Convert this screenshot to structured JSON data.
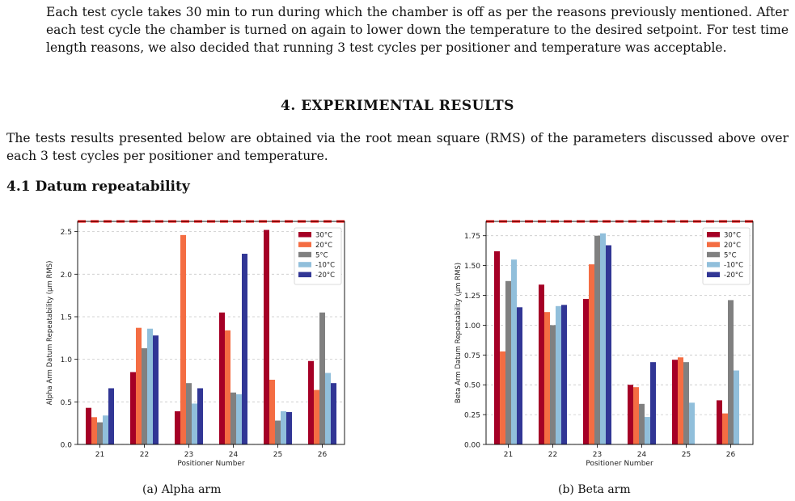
{
  "paragraphs": {
    "intro": "Each test cycle takes 30 min to run during which the chamber is off as per the reasons previously mentioned. After each test cycle the chamber is turned on again to lower down the temperature to the desired setpoint. For test time length reasons, we also decided that running 3 test cycles per positioner and temperature was acceptable.",
    "results": "The tests results presented below are obtained via the root mean square (RMS) of the parameters discussed above over each 3 test cycles per positioner and temperature."
  },
  "headings": {
    "section": "4. EXPERIMENTAL RESULTS",
    "subsection": "4.1  Datum repeatability"
  },
  "captions": {
    "alpha": "(a) Alpha arm",
    "beta": "(b) Beta arm"
  },
  "colors": {
    "30°C": "#a50026",
    "20°C": "#f46d43",
    "5°C": "#808080",
    "-10°C": "#91bfdb",
    "-20°C": "#313695",
    "requirement_line": "#ff0000"
  },
  "chart_data": [
    {
      "type": "bar",
      "xlabel": "Positioner Number",
      "ylabel": "Alpha Arm Datum Repeatability (μm RMS)",
      "categories": [
        "21",
        "22",
        "23",
        "24",
        "25",
        "26"
      ],
      "ylim": [
        0,
        2.62
      ],
      "yticks": [
        "0.0",
        "0.5",
        "1.0",
        "1.5",
        "2.0",
        "2.5"
      ],
      "yticks_values": [
        0,
        0.5,
        1.0,
        1.5,
        2.0,
        2.5
      ],
      "grid": true,
      "legend_position": "top-right",
      "threshold_line": 2.62,
      "series": [
        {
          "name": "30°C",
          "values": [
            0.43,
            0.85,
            0.39,
            1.55,
            2.52,
            0.98
          ]
        },
        {
          "name": "20°C",
          "values": [
            0.32,
            1.37,
            2.46,
            1.34,
            0.76,
            0.64
          ]
        },
        {
          "name": "5°C",
          "values": [
            0.26,
            1.13,
            0.72,
            0.61,
            0.28,
            1.55
          ]
        },
        {
          "name": "-10°C",
          "values": [
            0.34,
            1.36,
            0.48,
            0.59,
            0.39,
            0.84
          ]
        },
        {
          "name": "-20°C",
          "values": [
            0.66,
            1.28,
            0.66,
            2.24,
            0.38,
            0.72
          ]
        }
      ]
    },
    {
      "type": "bar",
      "xlabel": "Positioner Number",
      "ylabel": "Beta Arm Datum Repeatability (μm RMS)",
      "categories": [
        "21",
        "22",
        "23",
        "24",
        "25",
        "26"
      ],
      "ylim": [
        0,
        1.87
      ],
      "yticks": [
        "0.00",
        "0.25",
        "0.50",
        "0.75",
        "1.00",
        "1.25",
        "1.50",
        "1.75"
      ],
      "yticks_values": [
        0,
        0.25,
        0.5,
        0.75,
        1.0,
        1.25,
        1.5,
        1.75
      ],
      "grid": true,
      "legend_position": "top-right",
      "threshold_line": 1.87,
      "series": [
        {
          "name": "30°C",
          "values": [
            1.62,
            1.34,
            1.22,
            0.5,
            0.71,
            0.37
          ]
        },
        {
          "name": "20°C",
          "values": [
            0.78,
            1.11,
            1.51,
            0.48,
            0.73,
            0.26
          ]
        },
        {
          "name": "5°C",
          "values": [
            1.37,
            1.0,
            1.75,
            0.34,
            0.69,
            1.21
          ]
        },
        {
          "name": "-10°C",
          "values": [
            1.55,
            1.16,
            1.77,
            0.23,
            0.35,
            0.62
          ]
        },
        {
          "name": "-20°C",
          "values": [
            1.15,
            1.17,
            1.67,
            0.69,
            null,
            null
          ]
        }
      ]
    }
  ]
}
